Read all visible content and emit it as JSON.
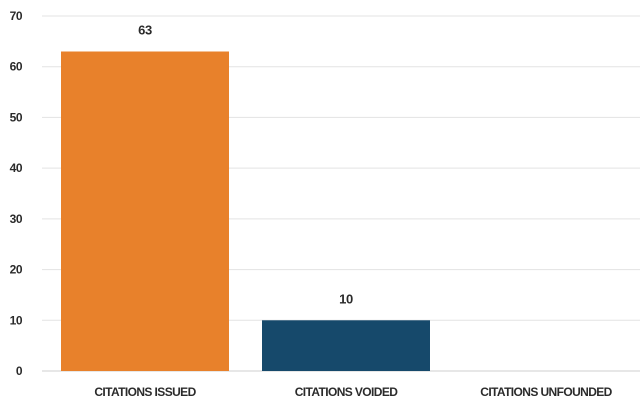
{
  "chart_data": {
    "type": "bar",
    "categories": [
      "CITATIONS ISSUED",
      "CITATIONS VOIDED",
      "CITATIONS UNFOUNDED"
    ],
    "values": [
      63,
      10,
      0
    ],
    "data_labels": [
      "63",
      "10",
      ""
    ],
    "colors": [
      "#e8812b",
      "#16496b",
      "#16496b"
    ],
    "ylim": [
      0,
      70
    ],
    "yticks": [
      0,
      10,
      20,
      30,
      40,
      50,
      60,
      70
    ],
    "grid": true,
    "title": "",
    "xlabel": "",
    "ylabel": ""
  }
}
